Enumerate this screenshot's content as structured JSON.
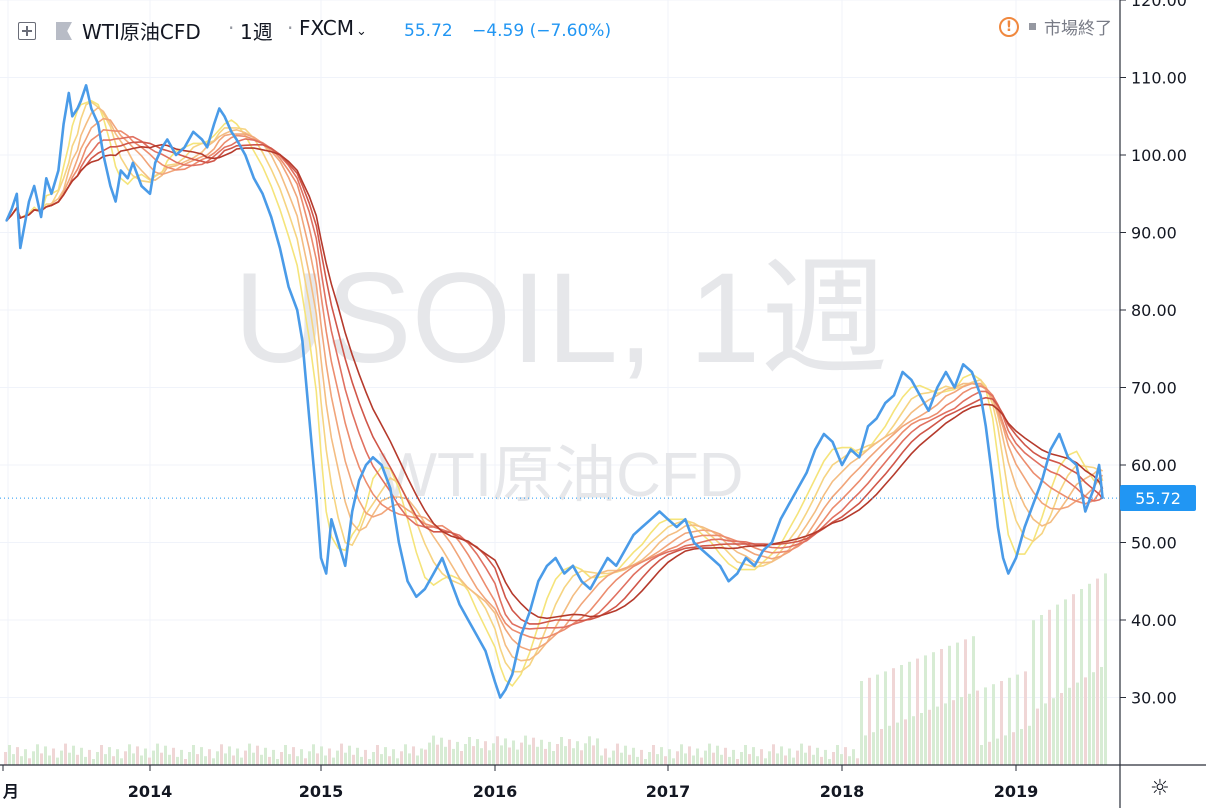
{
  "header": {
    "symbol": "WTI原油CFD",
    "separator": "·",
    "interval": "1週",
    "exchange": "FXCM",
    "price": "55.72",
    "change": "−4.59 (−7.60%)",
    "market_status": "市場終了",
    "warn_symbol": "!"
  },
  "watermark": {
    "symbol": "USOIL, 1週",
    "description": "WTI原油CFD"
  },
  "price_tag": "55.72",
  "axis": {
    "y_ticks": [
      "120.00",
      "110.00",
      "100.00",
      "90.00",
      "80.00",
      "70.00",
      "60.00",
      "50.00",
      "40.00",
      "30.00"
    ],
    "x_ticks": [
      "月",
      "2014",
      "2015",
      "2016",
      "2017",
      "2018",
      "2019"
    ]
  },
  "colors": {
    "price_line": "#4a9be8",
    "ribbon": [
      "#f5e47a",
      "#f6d482",
      "#f4bd82",
      "#f1a57a",
      "#ec8c6e",
      "#e07060",
      "#d05649",
      "#b53a2c"
    ],
    "volume_up": "#d7ecd4",
    "volume_down": "#f0d6d6",
    "grid": "#f0f3fa"
  },
  "chart_data": {
    "type": "line",
    "title": "WTI原油CFD",
    "ylim": [
      20,
      120
    ],
    "y_axis_position": "right",
    "grid": true,
    "last_value": 55.72,
    "series": [
      {
        "name": "WTI原油CFD",
        "x": [
          2013.17,
          2013.2,
          2013.23,
          2013.25,
          2013.3,
          2013.33,
          2013.37,
          2013.4,
          2013.43,
          2013.47,
          2013.5,
          2013.53,
          2013.55,
          2013.58,
          2013.6,
          2013.63,
          2013.66,
          2013.7,
          2013.73,
          2013.77,
          2013.8,
          2013.83,
          2013.87,
          2013.9,
          2013.95,
          2014.0,
          2014.03,
          2014.07,
          2014.1,
          2014.15,
          2014.2,
          2014.25,
          2014.3,
          2014.33,
          2014.37,
          2014.4,
          2014.43,
          2014.47,
          2014.5,
          2014.55,
          2014.6,
          2014.65,
          2014.7,
          2014.75,
          2014.8,
          2014.85,
          2014.88,
          2014.92,
          2014.96,
          2015.0,
          2015.03,
          2015.06,
          2015.1,
          2015.14,
          2015.18,
          2015.22,
          2015.26,
          2015.3,
          2015.35,
          2015.4,
          2015.45,
          2015.5,
          2015.55,
          2015.6,
          2015.65,
          2015.7,
          2015.75,
          2015.8,
          2015.85,
          2015.9,
          2015.95,
          2016.0,
          2016.03,
          2016.06,
          2016.1,
          2016.15,
          2016.2,
          2016.25,
          2016.3,
          2016.35,
          2016.4,
          2016.45,
          2016.5,
          2016.55,
          2016.6,
          2016.65,
          2016.7,
          2016.75,
          2016.8,
          2016.85,
          2016.9,
          2016.95,
          2017.0,
          2017.05,
          2017.1,
          2017.15,
          2017.2,
          2017.25,
          2017.3,
          2017.35,
          2017.4,
          2017.45,
          2017.5,
          2017.55,
          2017.6,
          2017.65,
          2017.7,
          2017.75,
          2017.8,
          2017.85,
          2017.9,
          2017.95,
          2018.0,
          2018.05,
          2018.1,
          2018.15,
          2018.2,
          2018.25,
          2018.3,
          2018.35,
          2018.4,
          2018.45,
          2018.5,
          2018.55,
          2018.6,
          2018.65,
          2018.7,
          2018.75,
          2018.8,
          2018.83,
          2018.87,
          2018.9,
          2018.93,
          2018.96,
          2019.0,
          2019.05,
          2019.1,
          2019.15,
          2019.2,
          2019.25,
          2019.3,
          2019.35,
          2019.4,
          2019.45,
          2019.48,
          2019.5
        ],
        "values": [
          91.5,
          93,
          95,
          88,
          94,
          96,
          92,
          97,
          95,
          98,
          104,
          108,
          105,
          106,
          107,
          109,
          106,
          104,
          100,
          96,
          94,
          98,
          97,
          99,
          96,
          95,
          99,
          101,
          102,
          100,
          101,
          103,
          102,
          101,
          104,
          106,
          105,
          103,
          102,
          100,
          97,
          95,
          92,
          88,
          83,
          80,
          76,
          66,
          56,
          48,
          46,
          53,
          50,
          47,
          54,
          58,
          60,
          61,
          60,
          57,
          50,
          45,
          43,
          44,
          46,
          48,
          45,
          42,
          40,
          38,
          36,
          32,
          30,
          31,
          33,
          38,
          41,
          45,
          47,
          48,
          46,
          47,
          45,
          44,
          46,
          48,
          47,
          49,
          51,
          52,
          53,
          54,
          53,
          52,
          53,
          50,
          49,
          48,
          47,
          45,
          46,
          48,
          47,
          49,
          50,
          53,
          55,
          57,
          59,
          62,
          64,
          63,
          60,
          62,
          61,
          65,
          66,
          68,
          69,
          72,
          71,
          69,
          67,
          70,
          72,
          70,
          73,
          72,
          69,
          65,
          58,
          52,
          48,
          46,
          48,
          52,
          55,
          58,
          62,
          64,
          61,
          60,
          54,
          57,
          60,
          55.72
        ]
      }
    ]
  }
}
